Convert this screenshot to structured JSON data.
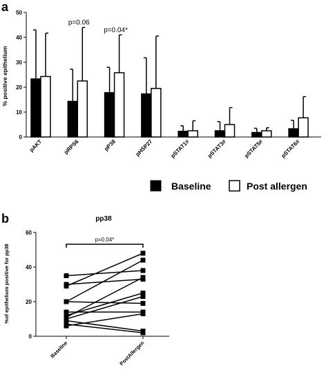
{
  "panels": {
    "a": {
      "letter": "a"
    },
    "b": {
      "letter": "b"
    }
  },
  "chart_data": [
    {
      "panel": "a",
      "type": "bar",
      "ylabel": "% positive epithelium",
      "ylim": [
        0,
        50
      ],
      "yticks": [
        0,
        10,
        20,
        30,
        40,
        50
      ],
      "categories": [
        "pAKT",
        "pRPS6",
        "pP38",
        "pHSP27",
        "pSTAT1#",
        "pSTAT3#",
        "pSTAT5#",
        "pSTAT6#"
      ],
      "series": [
        {
          "name": "Baseline",
          "color": "#000000",
          "values": [
            23.3,
            14.3,
            17.8,
            17.3,
            2.3,
            2.5,
            1.8,
            3.3
          ],
          "errors": [
            43.0,
            27.2,
            28.0,
            31.8,
            4.5,
            6.2,
            3.5,
            6.7
          ]
        },
        {
          "name": "Post allergen",
          "color": "#ffffff",
          "values": [
            24.3,
            22.5,
            25.8,
            19.5,
            2.5,
            5.0,
            2.5,
            7.7
          ],
          "errors": [
            41.7,
            44.0,
            41.0,
            40.5,
            6.5,
            11.8,
            3.7,
            16.2
          ]
        }
      ],
      "annotations": [
        {
          "category": "pRPS6",
          "text": "p=0.06"
        },
        {
          "category": "pP38",
          "text": "p=0.04*"
        }
      ],
      "legend_position": "bottom"
    },
    {
      "panel": "b",
      "type": "line",
      "title": "pp38",
      "ylabel": "%of epithelium positive for pp38",
      "ylim": [
        0,
        60
      ],
      "yticks": [
        0,
        20,
        40,
        60
      ],
      "categories": [
        "Baseline",
        "PostAllergen"
      ],
      "pairs": [
        [
          35,
          38
        ],
        [
          30,
          33
        ],
        [
          29,
          48
        ],
        [
          20,
          19
        ],
        [
          20,
          44
        ],
        [
          14,
          14
        ],
        [
          11,
          34
        ],
        [
          12,
          25
        ],
        [
          10,
          23
        ],
        [
          9,
          3
        ],
        [
          7,
          2
        ],
        [
          6,
          13
        ]
      ],
      "annotation": "p=0.04*"
    }
  ]
}
